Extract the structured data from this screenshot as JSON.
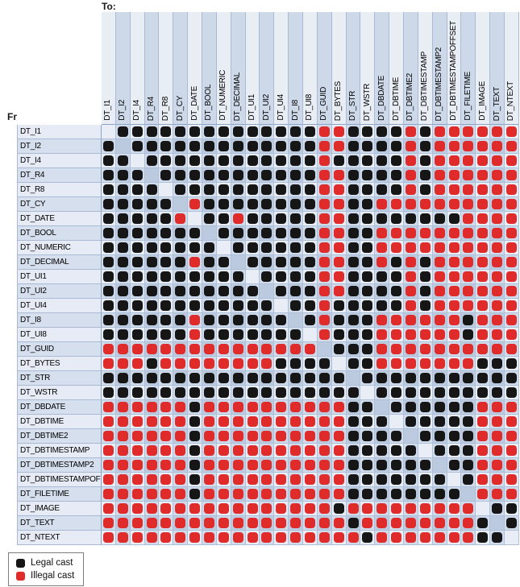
{
  "labels": {
    "to": "To:",
    "from": "From:"
  },
  "legend": {
    "items": [
      {
        "label": "Legal cast",
        "color": "#161616"
      },
      {
        "label": "Illegal cast",
        "color": "#e02b2b"
      }
    ]
  },
  "colors": {
    "legal_dot": "#161616",
    "illegal_dot": "#e02b2b",
    "cell_light": "#e9eef6",
    "cell_medium": "#d0dbec",
    "cell_dark": "#bccadf",
    "gridline": "#aebfd8"
  },
  "chart_data": {
    "type": "heatmap",
    "xlabel": "To:",
    "ylabel": "From:",
    "legend": [
      "Legal cast",
      "Illegal cast"
    ],
    "cell_encoding": {
      "L": "legal cast (black dot)",
      "I": "illegal cast (red dot)",
      ".": "same type (empty diagonal cell)"
    },
    "categories": [
      "DT_I1",
      "DT_I2",
      "DT_I4",
      "DT_R4",
      "DT_R8",
      "DT_CY",
      "DT_DATE",
      "DT_BOOL",
      "DT_NUMERIC",
      "DT_DECIMAL",
      "DT_UI1",
      "DT_UI2",
      "DT_UI4",
      "DT_I8",
      "DT_UI8",
      "DT_GUID",
      "DT_BYTES",
      "DT_STR",
      "DT_WSTR",
      "DT_DBDATE",
      "DT_DBTIME",
      "DT_DBTIME2",
      "DT_DBTIMESTAMP",
      "DT_DBTIMESTAMP2",
      "DT_DBTIMESTAMPOFFSET",
      "DT_FILETIME",
      "DT_IMAGE",
      "DT_TEXT",
      "DT_NTEXT"
    ],
    "matrix": [
      ".LLLLLLLLLLLLLLIILLLLILIIIIII",
      "L.LLLLLLLLLLLLLIILLLLILIIIIII",
      "LL.LLLLLLLLLLLLILLLLLILIIIIII",
      "LLL.LLLLLLLLLLLIILLLLILIIIIII",
      "LLLL.LLLLLLLLLLIILLLLILIIIIII",
      "LLLLL.ILLLLLLLLIILLIIIIIIIIII",
      "LLLLLI.LLILLLLLIILLLLLLLLIIII",
      "LLLLLLL.LLLLLLLIILLIIIIIIIIII",
      "LLLLLLLL.LLLLLLIILLIIIIIIIIII",
      "LLLLLLILL.LLLLLIILLILILIIIIII",
      "LLLLLLLLLL.LLLLIILLLLILIIIIII",
      "LLLLLLLLLLL.LLLIILLLLILIIIIII",
      "LLLLLLLLLLLL.LLILLLLLILIIIIII",
      "LLLLLLILLLLLL.LILLLIIIIIILIII",
      "LLLLLLILLLLLLL.ILLLIIIIIILIII",
      "IIIIIIIIIIIIIII.LLLIIIIIIIIII",
      "IIILIIIIIIIILLLL.LLIIIIIIILLL",
      "LLLLLLLLLLLLLLLLL.LLLLLLLLLLL",
      "LLLLLLLLLLLLLLLLLL.LLLLLLLLLL",
      "IIIIIILIIIIIIIIIILL.LLLLLLIII",
      "IIIIIILIIIIIIIIIILLL.LLLLLIII",
      "IIIIIILIIIIIIIIIILLLL.LLLLIII",
      "IIIIIILIIIIIIIIIILLLLL.LLLIII",
      "IIIIIILIIIIIIIIIILLLLLL.LLIII",
      "IIIIIILIIIIIIIIIILLLLLLL.LIII",
      "IIIIIILIIIIIIIIIILLLLLLLL.III",
      "IIIIIIIIIIIIIIIILIIIIIIIII.LL",
      "IIIIIIIIIIIIIIIIILIIIIIIIIL.L",
      "IIIIIIIIIIIIIIIIIILIIIIIIILL."
    ]
  }
}
